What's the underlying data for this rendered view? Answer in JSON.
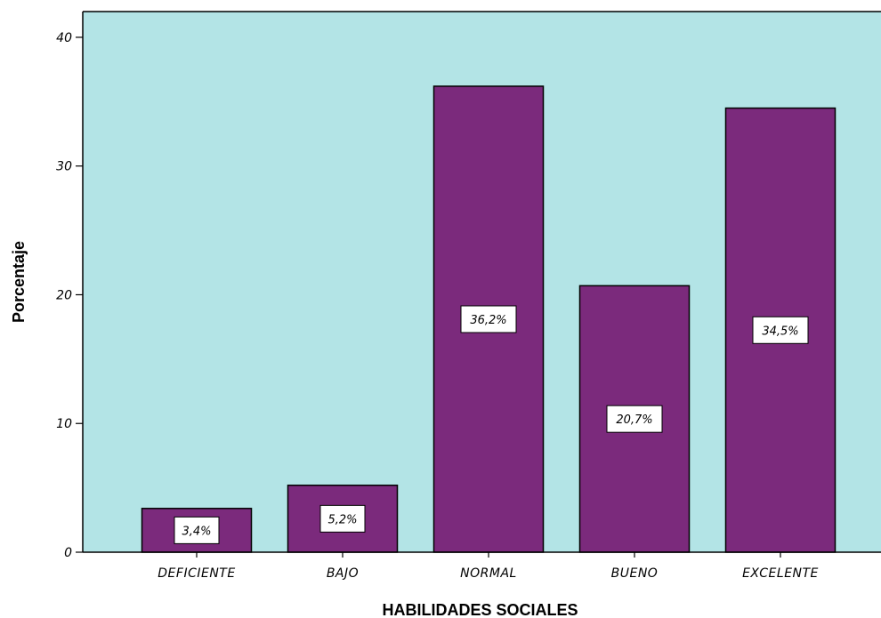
{
  "chart_data": {
    "type": "bar",
    "categories": [
      "DEFICIENTE",
      "BAJO",
      "NORMAL",
      "BUENO",
      "EXCELENTE"
    ],
    "values": [
      3.4,
      5.2,
      36.2,
      20.7,
      34.5
    ],
    "data_labels": [
      "3,4%",
      "5,2%",
      "36,2%",
      "20,7%",
      "34,5%"
    ],
    "xlabel": "HABILIDADES SOCIALES",
    "ylabel": "Porcentaje",
    "ylim": [
      0,
      42
    ],
    "yticks": [
      0,
      10,
      20,
      30,
      40
    ],
    "ytick_labels": [
      "0",
      "10",
      "20",
      "30",
      "40"
    ],
    "grid": false,
    "colors": {
      "plot_background": "#b3e4e6",
      "bar_fill": "#7b2a7c",
      "bar_stroke": "#000000",
      "label_box": "#ffffff"
    }
  }
}
